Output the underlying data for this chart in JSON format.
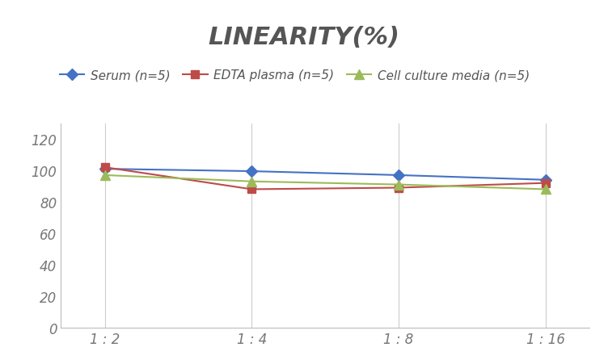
{
  "title": "LINEARITY(%)",
  "title_fontsize": 22,
  "title_fontstyle": "italic",
  "title_fontweight": "bold",
  "title_color": "#555555",
  "x_labels": [
    "1 : 2",
    "1 : 4",
    "1 : 8",
    "1 : 16"
  ],
  "x_positions": [
    0,
    1,
    2,
    3
  ],
  "series": [
    {
      "label": "Serum (n=5)",
      "values": [
        101,
        99.5,
        97,
        94
      ],
      "color": "#4472C4",
      "marker": "D",
      "markersize": 7,
      "linewidth": 1.5
    },
    {
      "label": "EDTA plasma (n=5)",
      "values": [
        102,
        88,
        89,
        92
      ],
      "color": "#BE4B48",
      "marker": "s",
      "markersize": 7,
      "linewidth": 1.5
    },
    {
      "label": "Cell culture media (n=5)",
      "values": [
        97,
        93,
        91,
        88
      ],
      "color": "#9BBB59",
      "marker": "^",
      "markersize": 8,
      "linewidth": 1.5
    }
  ],
  "ylim": [
    0,
    130
  ],
  "yticks": [
    0,
    20,
    40,
    60,
    80,
    100,
    120
  ],
  "background_color": "#ffffff",
  "grid_color": "#cccccc",
  "legend_fontsize": 11,
  "tick_fontsize": 12,
  "tick_color": "#777777"
}
